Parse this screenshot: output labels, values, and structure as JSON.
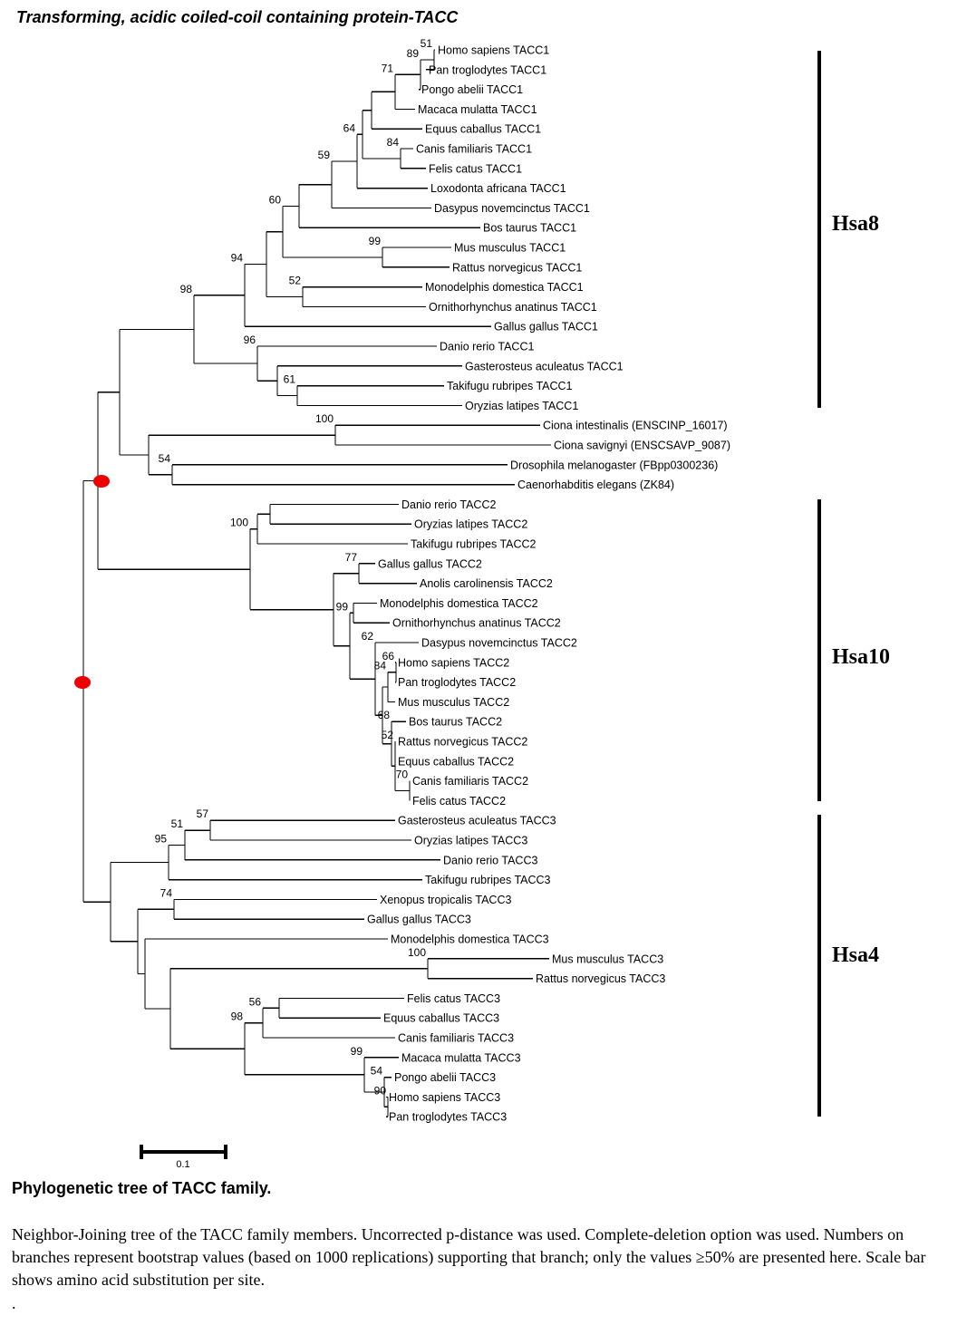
{
  "title": "Transforming, acidic coiled-coil containing protein-TACC",
  "leaves": [
    "Homo sapiens TACC1",
    "Pan troglodytes TACC1",
    "Pongo abelii TACC1",
    "Macaca mulatta TACC1",
    "Equus caballus TACC1",
    "Canis familiaris TACC1",
    "Felis catus TACC1",
    "Loxodonta africana TACC1",
    "Dasypus novemcinctus TACC1",
    "Bos taurus TACC1",
    "Mus musculus TACC1",
    "Rattus norvegicus TACC1",
    "Monodelphis domestica TACC1",
    "Ornithorhynchus anatinus TACC1",
    "Gallus gallus TACC1",
    "Danio rerio TACC1",
    "Gasterosteus aculeatus TACC1",
    "Takifugu rubripes TACC1",
    "Oryzias latipes TACC1",
    "Ciona intestinalis (ENSCINP_16017)",
    "Ciona savignyi (ENSCSAVP_9087)",
    "Drosophila melanogaster (FBpp0300236)",
    "Caenorhabditis elegans (ZK84)",
    "Danio rerio TACC2",
    "Oryzias latipes TACC2",
    "Takifugu rubripes TACC2",
    "Gallus gallus TACC2",
    "Anolis carolinensis TACC2",
    "Monodelphis domestica TACC2",
    "Ornithorhynchus anatinus TACC2",
    "Dasypus novemcinctus TACC2",
    "Homo sapiens TACC2",
    "Pan troglodytes TACC2",
    "Mus musculus TACC2",
    "Bos taurus TACC2",
    "Rattus norvegicus TACC2",
    "Equus caballus TACC2",
    "Canis familiaris TACC2",
    "Felis catus TACC2",
    "Gasterosteus aculeatus TACC3",
    "Oryzias latipes TACC3",
    "Danio rerio TACC3",
    "Takifugu rubripes TACC3",
    "Xenopus tropicalis TACC3",
    "Gallus gallus TACC3",
    "Monodelphis domestica TACC3",
    "Mus musculus TACC3",
    "Rattus norvegicus TACC3",
    "Felis catus TACC3",
    "Equus caballus TACC3",
    "Canis familiaris TACC3",
    "Macaca mulatta TACC3",
    "Pongo abelii TACC3",
    "Homo sapiens TACC3",
    "Pan troglodytes TACC3"
  ],
  "bootstraps": [
    "51",
    "89",
    "71",
    "64",
    "84",
    "59",
    "99",
    "60",
    "52",
    "94",
    "98",
    "96",
    "61",
    "100",
    "54",
    "77",
    "99",
    "62",
    "66",
    "84",
    "68",
    "52",
    "70",
    "100",
    "57",
    "51",
    "95",
    "74",
    "100",
    "56",
    "99",
    "54",
    "90",
    "98"
  ],
  "chromosomes": [
    "Hsa8",
    "Hsa10",
    "Hsa4"
  ],
  "scale_label": "0.1",
  "caption": {
    "title": "Phylogenetic tree of TACC family.",
    "body": "Neighbor-Joining tree of the TACC family members. Uncorrected p-distance was used. Complete-deletion option was used. Numbers on branches represent bootstrap values (based on 1000 replications) supporting that branch; only the values ≥50% are presented here. Scale bar shows amino acid substitution per site.",
    "dot": "."
  },
  "colors": {
    "marker": "#ee0000",
    "line": "#000000"
  }
}
